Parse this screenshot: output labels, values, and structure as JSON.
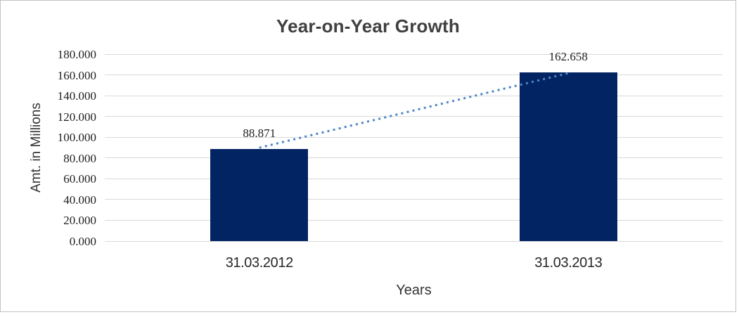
{
  "chart_data": {
    "type": "bar",
    "title": "Year-on-Year Growth",
    "xlabel": "Years",
    "ylabel": "Amt. in Millions",
    "categories": [
      "31.03.2012",
      "31.03.2013"
    ],
    "values": [
      88.871,
      162.658
    ],
    "data_labels": [
      "88.871",
      "162.658"
    ],
    "ylim": [
      0,
      180
    ],
    "y_tick_step": 20,
    "y_tick_labels": [
      "180.000",
      "160.000",
      "140.000",
      "120.000",
      "100.000",
      "80.000",
      "60.000",
      "40.000",
      "20.000",
      "0.000"
    ],
    "grid": true,
    "legend": false,
    "colors": {
      "bar": "#032463",
      "trendline": "#4E86C8",
      "gridline": "#D9D9D9",
      "frame_border": "#C3C3C3",
      "title_text": "#404040",
      "axis_text": "#333333",
      "tick_text": "#1F1F1F"
    },
    "trendline": {
      "style": "dotted",
      "from_category": "31.03.2012",
      "from_value": 88.871,
      "to_category": "31.03.2013",
      "to_value": 162.658
    }
  }
}
